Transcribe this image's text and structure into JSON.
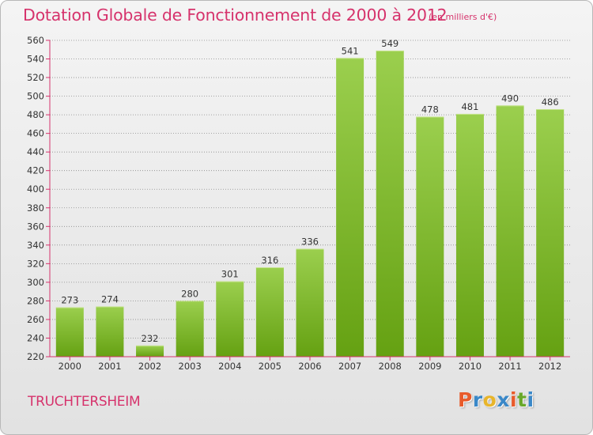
{
  "header": {
    "title": "Dotation Globale de Fonctionnement de 2000 à 2012",
    "unit": "(en milliers d'€)"
  },
  "footer": {
    "commune": "TRUCHTERSHEIM",
    "logo_text": "Proxiti",
    "logo_colors": [
      "#e85b2b",
      "#3a88c8",
      "#e8b52a",
      "#3a88c8",
      "#e85b2b",
      "#69a82a",
      "#3a88c8"
    ]
  },
  "colors": {
    "accent": "#d6336c",
    "bar_light": "#9bcf4e",
    "bar_dark": "#65a112",
    "axis": "#d6336c",
    "grid": "#8a8a8a"
  },
  "chart_data": {
    "type": "bar",
    "title": "Dotation Globale de Fonctionnement de 2000 à 2012",
    "subtitle": "(en milliers d'€)",
    "categories": [
      "2000",
      "2001",
      "2002",
      "2003",
      "2004",
      "2005",
      "2006",
      "2007",
      "2008",
      "2009",
      "2010",
      "2011",
      "2012"
    ],
    "values": [
      273,
      274,
      232,
      280,
      301,
      316,
      336,
      541,
      549,
      478,
      481,
      490,
      486
    ],
    "ylim": [
      220,
      560
    ],
    "yticks": [
      220,
      240,
      260,
      280,
      300,
      320,
      340,
      360,
      380,
      400,
      420,
      440,
      460,
      480,
      500,
      520,
      540,
      560
    ],
    "grid": true,
    "data_labels": true,
    "xlabel": "",
    "ylabel": ""
  }
}
